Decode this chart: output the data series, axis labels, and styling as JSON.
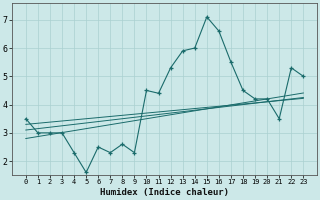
{
  "xlabel": "Humidex (Indice chaleur)",
  "bg_color": "#cce8e8",
  "line_color": "#1a6b6b",
  "grid_color": "#aad0d0",
  "x_values": [
    0,
    1,
    2,
    3,
    4,
    5,
    6,
    7,
    8,
    9,
    10,
    11,
    12,
    13,
    14,
    15,
    16,
    17,
    18,
    19,
    20,
    21,
    22,
    23
  ],
  "main_y": [
    3.5,
    3.0,
    3.0,
    3.0,
    2.3,
    1.6,
    2.5,
    2.3,
    2.6,
    2.3,
    4.5,
    4.4,
    5.3,
    5.9,
    6.0,
    7.1,
    6.6,
    5.5,
    4.5,
    4.2,
    4.2,
    3.5,
    5.3,
    5.0
  ],
  "trend1_y": [
    3.1,
    3.15,
    3.2,
    3.25,
    3.3,
    3.35,
    3.4,
    3.45,
    3.5,
    3.55,
    3.6,
    3.65,
    3.7,
    3.75,
    3.8,
    3.85,
    3.9,
    3.95,
    4.0,
    4.05,
    4.1,
    4.15,
    4.2,
    4.25
  ],
  "trend2_y": [
    2.8,
    2.87,
    2.94,
    3.01,
    3.08,
    3.15,
    3.22,
    3.29,
    3.36,
    3.43,
    3.5,
    3.57,
    3.64,
    3.71,
    3.78,
    3.85,
    3.92,
    3.99,
    4.06,
    4.13,
    4.2,
    4.27,
    4.34,
    4.41
  ],
  "trend3_y": [
    3.3,
    3.34,
    3.38,
    3.42,
    3.46,
    3.5,
    3.54,
    3.58,
    3.62,
    3.66,
    3.7,
    3.74,
    3.78,
    3.82,
    3.86,
    3.9,
    3.94,
    3.98,
    4.02,
    4.06,
    4.1,
    4.14,
    4.18,
    4.22
  ],
  "ylim": [
    1.5,
    7.6
  ],
  "yticks": [
    2,
    3,
    4,
    5,
    6,
    7
  ],
  "xticks": [
    0,
    1,
    2,
    3,
    4,
    5,
    6,
    7,
    8,
    9,
    10,
    11,
    12,
    13,
    14,
    15,
    16,
    17,
    18,
    19,
    20,
    21,
    22,
    23
  ]
}
